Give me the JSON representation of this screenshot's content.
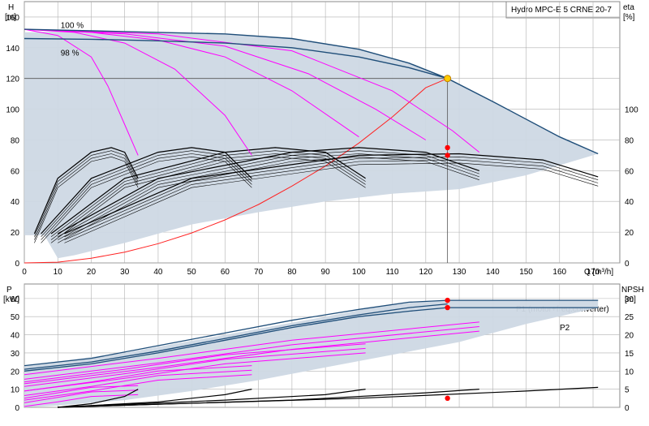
{
  "title": "Hydro MPC-E 5 CRNE 20-7",
  "colors": {
    "envelope": "#cdd8e4",
    "qh": "#1f4e79",
    "speed_curves": "#ff00ff",
    "efficiency": "#000000",
    "system_curve": "#ff2222",
    "duty_point": "#ffcc00",
    "marker": "#ff0000",
    "grid": "#b0b0b0",
    "frame": "#888888"
  },
  "chart_data": [
    {
      "type": "line",
      "name": "head",
      "title": "Hydro MPC-E 5 CRNE 20-7",
      "ylabel": "H",
      "yunit": "[m]",
      "y2label": "eta",
      "y2unit": "[%]",
      "xlabel": "Q [m³/h]",
      "xlim": [
        0,
        178
      ],
      "ylim": [
        0,
        170
      ],
      "x_ticks": [
        0,
        10,
        20,
        30,
        40,
        50,
        60,
        70,
        80,
        90,
        100,
        110,
        120,
        130,
        140,
        150,
        160,
        170
      ],
      "y_ticks": [
        0,
        20,
        40,
        60,
        80,
        100,
        120,
        140,
        160
      ],
      "y2_ticks": [
        0,
        20,
        40,
        60,
        80,
        100
      ],
      "grid": true,
      "duty_point": {
        "x": 126.5,
        "y": 120
      },
      "speed_labels": [
        {
          "text": "100 %",
          "x": 6,
          "y": 155
        },
        {
          "text": "98 %",
          "x": 6,
          "y": 137
        }
      ],
      "envelope": [
        [
          0,
          150
        ],
        [
          20,
          151
        ],
        [
          40,
          150
        ],
        [
          60,
          149
        ],
        [
          80,
          146
        ],
        [
          100,
          139
        ],
        [
          115,
          130
        ],
        [
          126.5,
          120
        ],
        [
          140,
          105
        ],
        [
          160,
          82
        ],
        [
          171.5,
          71
        ],
        [
          150,
          57
        ],
        [
          130,
          48
        ],
        [
          110,
          45
        ],
        [
          90,
          40
        ],
        [
          70,
          33
        ],
        [
          50,
          25
        ],
        [
          30,
          13
        ],
        [
          15,
          5
        ],
        [
          10,
          3
        ],
        [
          6,
          18
        ],
        [
          0,
          18
        ]
      ],
      "qh_curves": [
        {
          "name": "100 %",
          "x": [
            0,
            20,
            40,
            60,
            80,
            100,
            115,
            126.5,
            140,
            160,
            171.5
          ],
          "y": [
            152,
            151,
            150,
            149,
            146,
            139,
            130,
            120,
            105,
            82,
            71
          ]
        },
        {
          "name": "98 %",
          "x": [
            0,
            20,
            40,
            60,
            80,
            100,
            115,
            126.5
          ],
          "y": [
            146,
            145.5,
            144.5,
            143,
            140,
            134,
            127,
            120
          ]
        }
      ],
      "speed_curves": [
        {
          "x": [
            0,
            10,
            20,
            25,
            30,
            34
          ],
          "y": [
            152,
            148,
            134,
            115,
            90,
            70
          ]
        },
        {
          "x": [
            0,
            15,
            30,
            45,
            60,
            68
          ],
          "y": [
            152,
            150,
            143,
            126,
            96,
            70
          ]
        },
        {
          "x": [
            0,
            20,
            40,
            60,
            80,
            100
          ],
          "y": [
            152,
            150,
            145,
            134,
            112,
            82
          ]
        },
        {
          "x": [
            0,
            30,
            60,
            85,
            105,
            120
          ],
          "y": [
            152,
            149,
            141,
            123,
            100,
            80
          ]
        },
        {
          "x": [
            0,
            40,
            80,
            110,
            128,
            136
          ],
          "y": [
            152,
            149,
            138,
            112,
            86,
            72
          ]
        }
      ],
      "system_curve": {
        "x": [
          0,
          10,
          20,
          30,
          40,
          50,
          60,
          70,
          80,
          90,
          100,
          110,
          120,
          126.5
        ],
        "y": [
          0,
          0.5,
          3,
          7,
          12.5,
          19.5,
          28,
          38,
          50,
          63,
          78,
          95,
          114,
          120
        ]
      },
      "efficiency_curves": [
        {
          "x": [
            3,
            10,
            20,
            26,
            30,
            34
          ],
          "y": [
            19,
            55,
            72,
            75,
            72,
            55
          ]
        },
        {
          "x": [
            5,
            20,
            40,
            50,
            60,
            68
          ],
          "y": [
            19,
            55,
            72,
            75,
            72,
            55
          ]
        },
        {
          "x": [
            8,
            30,
            60,
            75,
            90,
            102
          ],
          "y": [
            19,
            55,
            72,
            75,
            72,
            55
          ]
        },
        {
          "x": [
            10,
            40,
            80,
            100,
            120,
            136
          ],
          "y": [
            19,
            55,
            72,
            75,
            72,
            60
          ]
        },
        {
          "x": [
            12,
            50,
            100,
            130,
            155,
            171.5
          ],
          "y": [
            19,
            55,
            70,
            71,
            67,
            56
          ]
        }
      ],
      "markers": [
        {
          "x": 126.5,
          "y": 75
        },
        {
          "x": 126.5,
          "y": 70
        }
      ]
    },
    {
      "type": "line",
      "name": "power",
      "ylabel": "P",
      "yunit": "[kW]",
      "y2label": "NPSH",
      "y2unit": "[m]",
      "xlim": [
        0,
        178
      ],
      "ylim": [
        0,
        68
      ],
      "y_ticks": [
        0,
        10,
        20,
        30,
        40,
        50,
        60
      ],
      "y2_ticks": [
        0,
        5,
        10,
        15,
        20,
        25,
        30
      ],
      "legend_labels": [
        "P1 (motor+freq.converter)",
        "P2"
      ],
      "envelope": [
        [
          0,
          23
        ],
        [
          30,
          30
        ],
        [
          60,
          40
        ],
        [
          90,
          50
        ],
        [
          110,
          57
        ],
        [
          126.5,
          59
        ],
        [
          171.5,
          59
        ],
        [
          171.5,
          55
        ],
        [
          150,
          46
        ],
        [
          130,
          36
        ],
        [
          110,
          29
        ],
        [
          90,
          22
        ],
        [
          70,
          15
        ],
        [
          50,
          9
        ],
        [
          30,
          4
        ],
        [
          10,
          1
        ],
        [
          0,
          0
        ]
      ],
      "p1_curves": [
        {
          "x": [
            0,
            20,
            40,
            60,
            80,
            100,
            115,
            126.5,
            171.5
          ],
          "y": [
            23,
            27,
            34,
            41,
            48,
            54,
            58,
            59,
            59
          ]
        },
        {
          "x": [
            0,
            20,
            40,
            60,
            80,
            100,
            115,
            126.5
          ],
          "y": [
            21,
            25,
            31,
            38,
            45,
            51,
            55,
            57
          ]
        }
      ],
      "p2_curves": [
        {
          "x": [
            0,
            20,
            40,
            60,
            80,
            100,
            115,
            126.5,
            171.5
          ],
          "y": [
            20,
            24,
            30,
            37,
            44,
            50,
            53,
            55,
            55
          ]
        }
      ],
      "speed_power_curves": [
        {
          "x": [
            0,
            10,
            20,
            34
          ],
          "y": [
            5,
            8,
            11,
            12
          ]
        },
        {
          "x": [
            0,
            20,
            40,
            68
          ],
          "y": [
            9,
            14,
            20,
            23
          ]
        },
        {
          "x": [
            0,
            30,
            60,
            102
          ],
          "y": [
            14,
            21,
            29,
            35
          ]
        },
        {
          "x": [
            0,
            40,
            80,
            136
          ],
          "y": [
            18,
            27,
            37,
            47
          ]
        }
      ],
      "npsh_curves": [
        {
          "x": [
            10,
            20,
            30,
            34
          ],
          "y": [
            0,
            1,
            3,
            5
          ]
        },
        {
          "x": [
            10,
            40,
            60,
            68
          ],
          "y": [
            0,
            1.5,
            3.5,
            5
          ]
        },
        {
          "x": [
            10,
            60,
            90,
            102
          ],
          "y": [
            0,
            2,
            3.5,
            5
          ]
        },
        {
          "x": [
            10,
            80,
            120,
            136
          ],
          "y": [
            0,
            2,
            4,
            5
          ]
        },
        {
          "x": [
            10,
            100,
            150,
            171.5
          ],
          "y": [
            0,
            2.5,
            4.5,
            5.5
          ]
        }
      ],
      "markers": [
        {
          "x": 126.5,
          "y": 59
        },
        {
          "x": 126.5,
          "y": 55
        },
        {
          "x": 126.5,
          "y": 2.5
        }
      ]
    }
  ]
}
